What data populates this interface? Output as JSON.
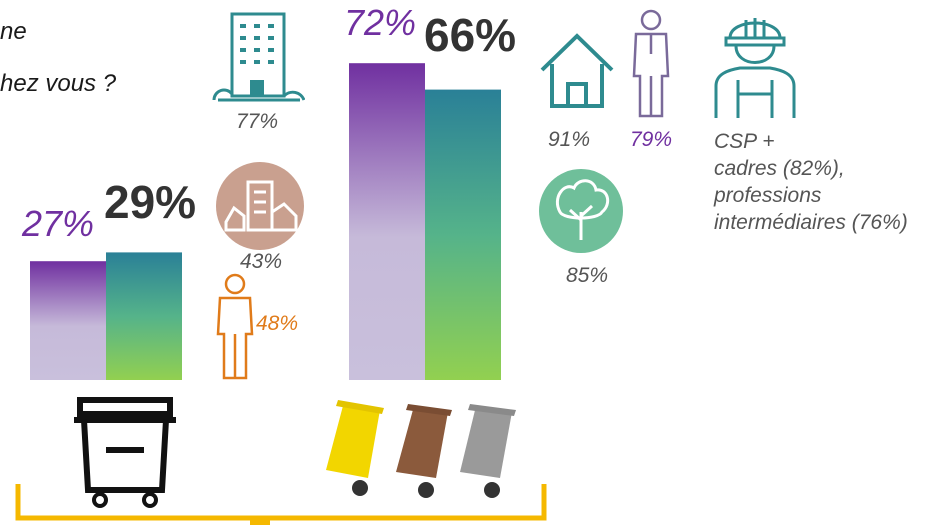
{
  "question": {
    "line1": "ne",
    "line2": "hez vous ?"
  },
  "chart_data": {
    "type": "bar",
    "categories": [
      "single-bin",
      "sorting-bins"
    ],
    "series": [
      {
        "values": [
          27,
          72
        ],
        "color": "#7030a0"
      },
      {
        "values": [
          29,
          66
        ],
        "color": "#2e8b8f"
      }
    ],
    "value_labels": [
      {
        "series0": "27%",
        "series1": "29%"
      },
      {
        "series0": "72%",
        "series1": "66%"
      }
    ],
    "ylim": [
      0,
      100
    ]
  },
  "annotations": {
    "left": {
      "building": "77%",
      "old_building": "43%",
      "young_man": "48%"
    },
    "right": {
      "house": "91%",
      "old_man": "79%",
      "tree": "85%",
      "worker_line1": "CSP +",
      "worker_line2": "cadres (82%),",
      "worker_line3": "professions",
      "worker_line4": "intermédiaires (76%)"
    }
  },
  "icons": {
    "building": "office-building-icon",
    "old_building": "old-building-icon",
    "young_man": "young-man-icon",
    "house": "house-icon",
    "old_man": "elderly-man-icon",
    "tree": "tree-icon",
    "worker": "construction-worker-icon",
    "bin_single": "single-waste-bin-icon",
    "bins_sorting": "sorting-bins-icon"
  },
  "colors": {
    "teal": "#2e8b8f",
    "purple": "#7030a0",
    "orange": "#e07b1a",
    "brown_circle": "#c9a08f",
    "green_circle": "#6fbf9a",
    "bracket": "#f5b800",
    "bin_yellow": "#f2d600",
    "bin_brown": "#8b5a3c",
    "bin_gray": "#9a9a9a"
  }
}
